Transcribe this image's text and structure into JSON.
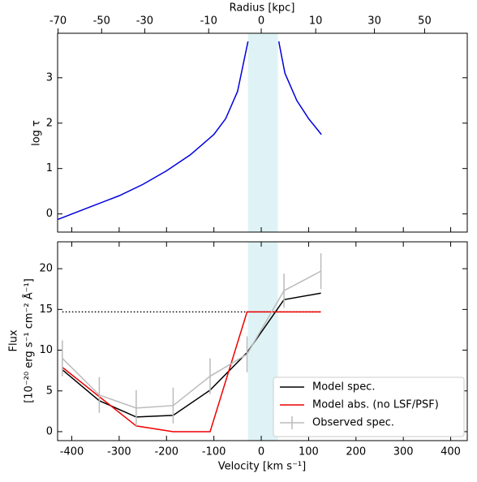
{
  "chart_data": [
    {
      "type": "line",
      "x_label_top": "Radius [kpc]",
      "y_label": "log τ",
      "xlim": [
        -430,
        435
      ],
      "x2ticks": [
        {
          "value": -429,
          "label": "-70"
        },
        {
          "value": -337,
          "label": "-50"
        },
        {
          "value": -246,
          "label": "-30"
        },
        {
          "value": -111,
          "label": "-10"
        },
        {
          "value": 0,
          "label": "0"
        },
        {
          "value": 115,
          "label": "10"
        },
        {
          "value": 239,
          "label": "30"
        },
        {
          "value": 345,
          "label": "50"
        }
      ],
      "ylim": [
        -0.4,
        3.98
      ],
      "yticks": [
        0,
        1,
        2,
        3
      ],
      "shaded_band": [
        -28,
        35
      ],
      "band_color": "#dff3f6",
      "series": [
        {
          "color": "#0000dd",
          "x": [
            -429,
            -350,
            -300,
            -250,
            -200,
            -150,
            -100,
            -75,
            -50,
            -28
          ],
          "values": [
            -0.12,
            0.2,
            0.4,
            0.65,
            0.95,
            1.3,
            1.75,
            2.1,
            2.7,
            3.8
          ]
        },
        {
          "color": "#0000dd",
          "x": [
            37,
            50,
            75,
            100,
            127
          ],
          "values": [
            3.8,
            3.1,
            2.5,
            2.1,
            1.75
          ]
        }
      ]
    },
    {
      "type": "line",
      "x_label": "Velocity [km s⁻¹]",
      "y_label": "Flux",
      "y_label_2": "[10⁻²⁰ erg s⁻¹ cm⁻² Å⁻¹]",
      "xlim": [
        -430,
        435
      ],
      "xticks": [
        -400,
        -300,
        -200,
        -100,
        0,
        100,
        200,
        300,
        400
      ],
      "ylim": [
        -1.1,
        23.3
      ],
      "yticks": [
        0,
        5,
        10,
        15,
        20
      ],
      "shaded_band": [
        -28,
        35
      ],
      "band_color": "#dff3f6",
      "hline": 14.7,
      "x": [
        -420,
        -342,
        -264,
        -186,
        -108,
        -30,
        48,
        126
      ],
      "series": [
        {
          "name": "Model spec.",
          "color": "#000000",
          "values": [
            7.6,
            3.8,
            1.8,
            2.0,
            5.1,
            9.7,
            16.2,
            17.0
          ]
        },
        {
          "name": "Model abs. (no LSF/PSF)",
          "color": "#ee0000",
          "values": [
            7.9,
            4.3,
            0.7,
            0,
            0,
            14.7,
            14.7,
            14.7
          ]
        },
        {
          "name": "Observed spec.",
          "color": "#bbbbbb",
          "values": [
            9.0,
            4.5,
            2.9,
            3.2,
            6.8,
            9.5,
            17.3,
            19.7
          ],
          "errors": [
            2.2,
            2.2,
            2.2,
            2.2,
            2.2,
            2.2,
            2.1,
            2.2
          ]
        }
      ],
      "legend": "lower right"
    }
  ]
}
